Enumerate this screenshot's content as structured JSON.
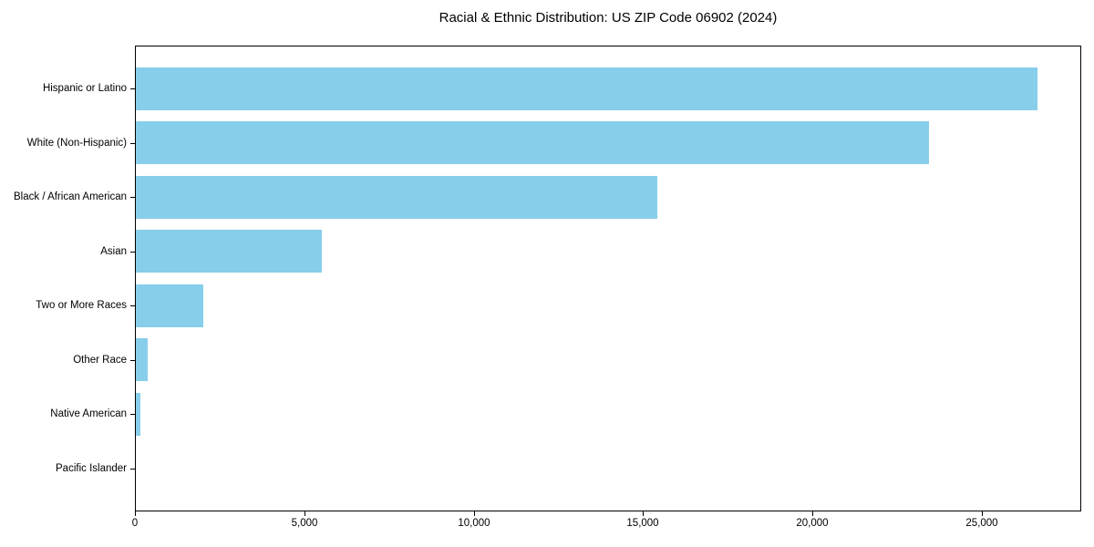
{
  "chart_data": {
    "type": "bar",
    "orientation": "horizontal",
    "title": "Racial & Ethnic Distribution: US ZIP Code 06902 (2024)",
    "categories": [
      "Hispanic or Latino",
      "White (Non-Hispanic)",
      "Black / African American",
      "Asian",
      "Two or More Races",
      "Other Race",
      "Native American",
      "Pacific Islander"
    ],
    "values": [
      26600,
      23400,
      15400,
      5500,
      2000,
      340,
      130,
      0
    ],
    "xlabel": "",
    "ylabel": "",
    "xlim": [
      0,
      27930
    ],
    "x_ticks": [
      0,
      5000,
      10000,
      15000,
      20000,
      25000
    ],
    "x_tick_labels": [
      "0",
      "5,000",
      "10,000",
      "15,000",
      "20,000",
      "25,000"
    ],
    "bar_color": "#87CEEB",
    "axis_color": "#000000",
    "text_color": "#000000",
    "background": "#FFFFFF",
    "grid": false,
    "legend": false
  }
}
